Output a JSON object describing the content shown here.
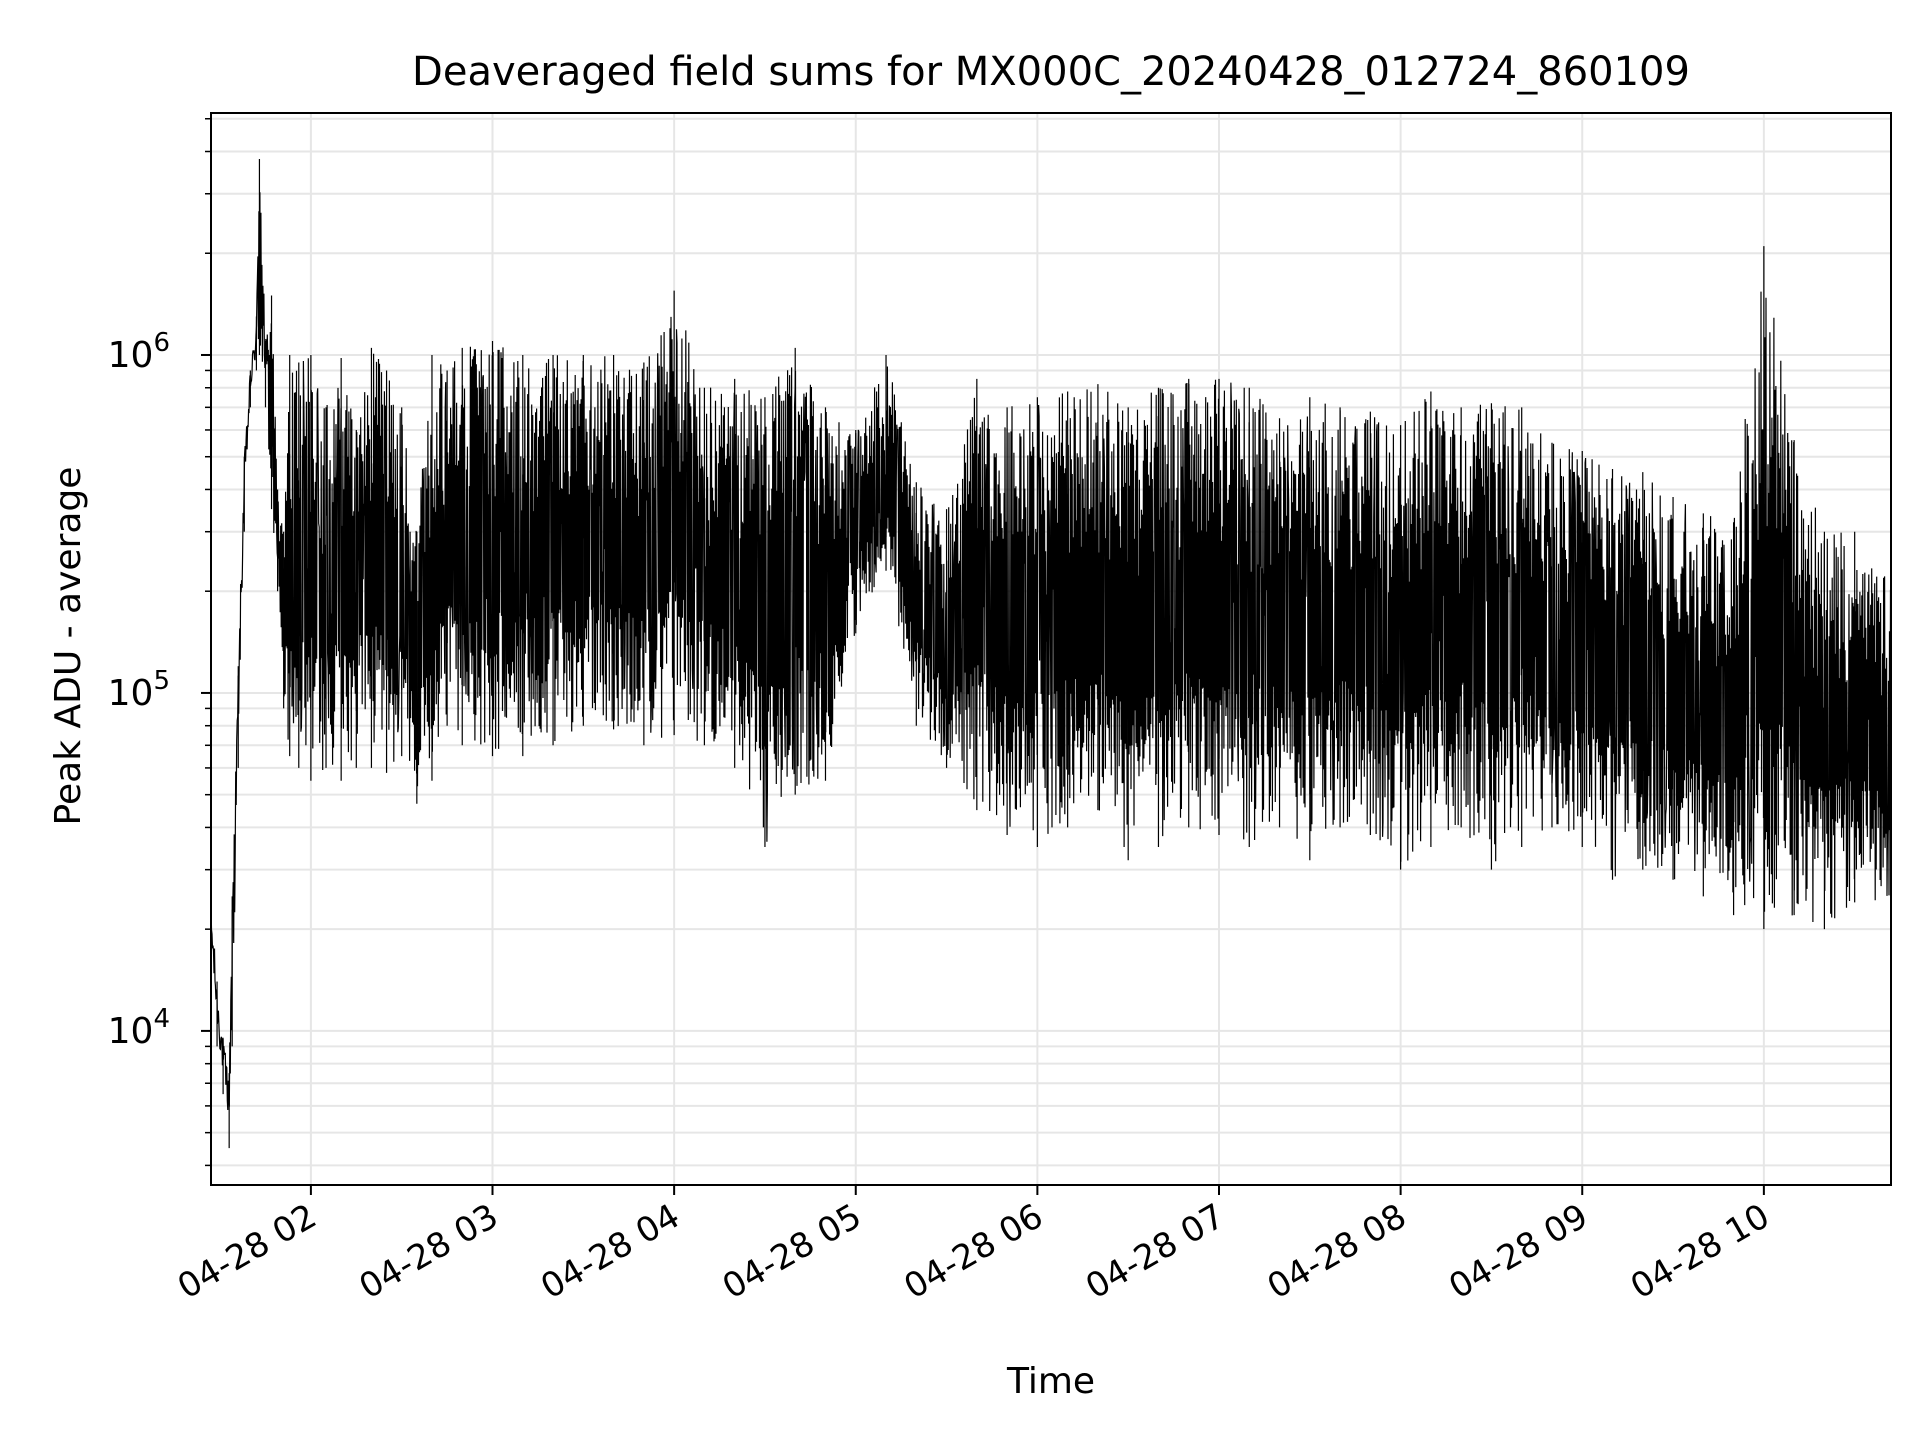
{
  "chart_data": {
    "type": "line",
    "title": "Deaveraged field sums for MX000C_20240428_012724_860109",
    "xlabel": "Time",
    "ylabel": "Peak ADU - average",
    "yscale": "log",
    "ylim": [
      3500,
      5200000
    ],
    "xlim": [
      "2024-04-28 01:27",
      "2024-04-28 10:42"
    ],
    "grid": true,
    "line_color": "#000000",
    "grid_color": "#e6e6e6",
    "x_ticks": [
      {
        "value": "2024-04-28 02:00",
        "label": "04-28 02"
      },
      {
        "value": "2024-04-28 03:00",
        "label": "04-28 03"
      },
      {
        "value": "2024-04-28 04:00",
        "label": "04-28 04"
      },
      {
        "value": "2024-04-28 05:00",
        "label": "04-28 05"
      },
      {
        "value": "2024-04-28 06:00",
        "label": "04-28 06"
      },
      {
        "value": "2024-04-28 07:00",
        "label": "04-28 07"
      },
      {
        "value": "2024-04-28 08:00",
        "label": "04-28 08"
      },
      {
        "value": "2024-04-28 09:00",
        "label": "04-28 09"
      },
      {
        "value": "2024-04-28 10:00",
        "label": "04-28 10"
      }
    ],
    "y_ticks": [
      {
        "value": 10000,
        "base": "10",
        "exp": "4"
      },
      {
        "value": 100000,
        "base": "10",
        "exp": "5"
      },
      {
        "value": 1000000,
        "base": "10",
        "exp": "6"
      }
    ],
    "series": [
      {
        "x": [
          "2024-04-28 01:27",
          "2024-04-28 01:29",
          "2024-04-28 01:31",
          "2024-04-28 01:33",
          "2024-04-28 01:34",
          "2024-04-28 01:36",
          "2024-04-28 01:38",
          "2024-04-28 01:40",
          "2024-04-28 01:42",
          "2024-04-28 01:43",
          "2024-04-28 01:45",
          "2024-04-28 01:47",
          "2024-04-28 01:49",
          "2024-04-28 01:51",
          "2024-04-28 01:53",
          "2024-04-28 01:56",
          "2024-04-28 02:00",
          "2024-04-28 02:05",
          "2024-04-28 02:10",
          "2024-04-28 02:15",
          "2024-04-28 02:20",
          "2024-04-28 02:25",
          "2024-04-28 02:30",
          "2024-04-28 02:35",
          "2024-04-28 02:40",
          "2024-04-28 02:45",
          "2024-04-28 02:50",
          "2024-04-28 03:00",
          "2024-04-28 03:10",
          "2024-04-28 03:20",
          "2024-04-28 03:30",
          "2024-04-28 03:40",
          "2024-04-28 03:50",
          "2024-04-28 04:00",
          "2024-04-28 04:10",
          "2024-04-28 04:20",
          "2024-04-28 04:30",
          "2024-04-28 04:40",
          "2024-04-28 04:50",
          "2024-04-28 05:00",
          "2024-04-28 05:10",
          "2024-04-28 05:20",
          "2024-04-28 05:30",
          "2024-04-28 05:40",
          "2024-04-28 05:50",
          "2024-04-28 06:00",
          "2024-04-28 06:10",
          "2024-04-28 06:20",
          "2024-04-28 06:30",
          "2024-04-28 06:40",
          "2024-04-28 06:50",
          "2024-04-28 07:00",
          "2024-04-28 07:10",
          "2024-04-28 07:20",
          "2024-04-28 07:30",
          "2024-04-28 07:40",
          "2024-04-28 07:50",
          "2024-04-28 08:00",
          "2024-04-28 08:10",
          "2024-04-28 08:20",
          "2024-04-28 08:30",
          "2024-04-28 08:40",
          "2024-04-28 08:50",
          "2024-04-28 09:00",
          "2024-04-28 09:10",
          "2024-04-28 09:20",
          "2024-04-28 09:30",
          "2024-04-28 09:40",
          "2024-04-28 09:50",
          "2024-04-28 10:00",
          "2024-04-28 10:10",
          "2024-04-28 10:20",
          "2024-04-28 10:30",
          "2024-04-28 10:42"
        ],
        "upper": [
          24000,
          14000,
          9500,
          7500,
          25000,
          120000,
          500000,
          900000,
          1300000,
          3800000,
          1100000,
          1500000,
          400000,
          300000,
          1000000,
          950000,
          1000000,
          700000,
          980000,
          600000,
          1050000,
          900000,
          700000,
          300000,
          1000000,
          900000,
          1050000,
          1100000,
          1000000,
          1000000,
          1000000,
          1000000,
          950000,
          1550000,
          800000,
          850000,
          750000,
          1050000,
          700000,
          600000,
          1000000,
          420000,
          350000,
          850000,
          700000,
          750000,
          780000,
          820000,
          700000,
          800000,
          850000,
          850000,
          800000,
          650000,
          750000,
          700000,
          680000,
          620000,
          780000,
          700000,
          720000,
          700000,
          550000,
          520000,
          460000,
          450000,
          380000,
          340000,
          320000,
          2100000,
          560000,
          300000,
          300000,
          220000
        ],
        "lower": [
          16000,
          9000,
          6500,
          4500,
          9000,
          60000,
          300000,
          700000,
          900000,
          1000000,
          700000,
          350000,
          200000,
          90000,
          65000,
          60000,
          55000,
          60000,
          55000,
          60000,
          60000,
          58000,
          65000,
          47000,
          55000,
          80000,
          70000,
          65000,
          65000,
          70000,
          80000,
          78000,
          70000,
          75000,
          70000,
          60000,
          35000,
          50000,
          55000,
          150000,
          230000,
          80000,
          60000,
          45000,
          38000,
          35000,
          40000,
          45000,
          32000,
          35000,
          40000,
          38000,
          35000,
          40000,
          32000,
          40000,
          38000,
          30000,
          35000,
          40000,
          30000,
          35000,
          40000,
          35000,
          28000,
          30000,
          28000,
          25000,
          22000,
          20000,
          22000,
          20000,
          24000,
          22000
        ]
      }
    ]
  }
}
